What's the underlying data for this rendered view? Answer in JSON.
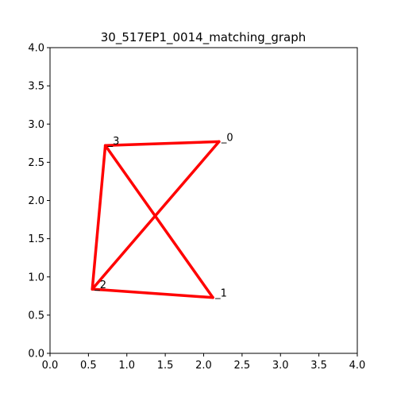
{
  "chart_data": {
    "type": "graph",
    "title": "30_517EP1_0014_matching_graph",
    "xlabel": "",
    "ylabel": "",
    "xlim": [
      0,
      4
    ],
    "ylim": [
      0,
      4
    ],
    "grid": false,
    "x_ticks": [
      "0.0",
      "0.5",
      "1.0",
      "1.5",
      "2.0",
      "2.5",
      "3.0",
      "3.5",
      "4.0"
    ],
    "y_ticks": [
      "0.0",
      "0.5",
      "1.0",
      "1.5",
      "2.0",
      "2.5",
      "3.0",
      "3.5",
      "4.0"
    ],
    "edge_color": "#ff0000",
    "nodes": [
      {
        "label": "_0",
        "x": 2.2,
        "y": 2.77
      },
      {
        "label": "_1",
        "x": 2.12,
        "y": 0.73
      },
      {
        "label": "_2",
        "x": 0.55,
        "y": 0.84
      },
      {
        "label": "_3",
        "x": 0.72,
        "y": 2.72
      }
    ],
    "edges": [
      {
        "from": 0,
        "to": 3
      },
      {
        "from": 0,
        "to": 2
      },
      {
        "from": 3,
        "to": 2
      },
      {
        "from": 3,
        "to": 1
      },
      {
        "from": 2,
        "to": 1
      }
    ]
  }
}
